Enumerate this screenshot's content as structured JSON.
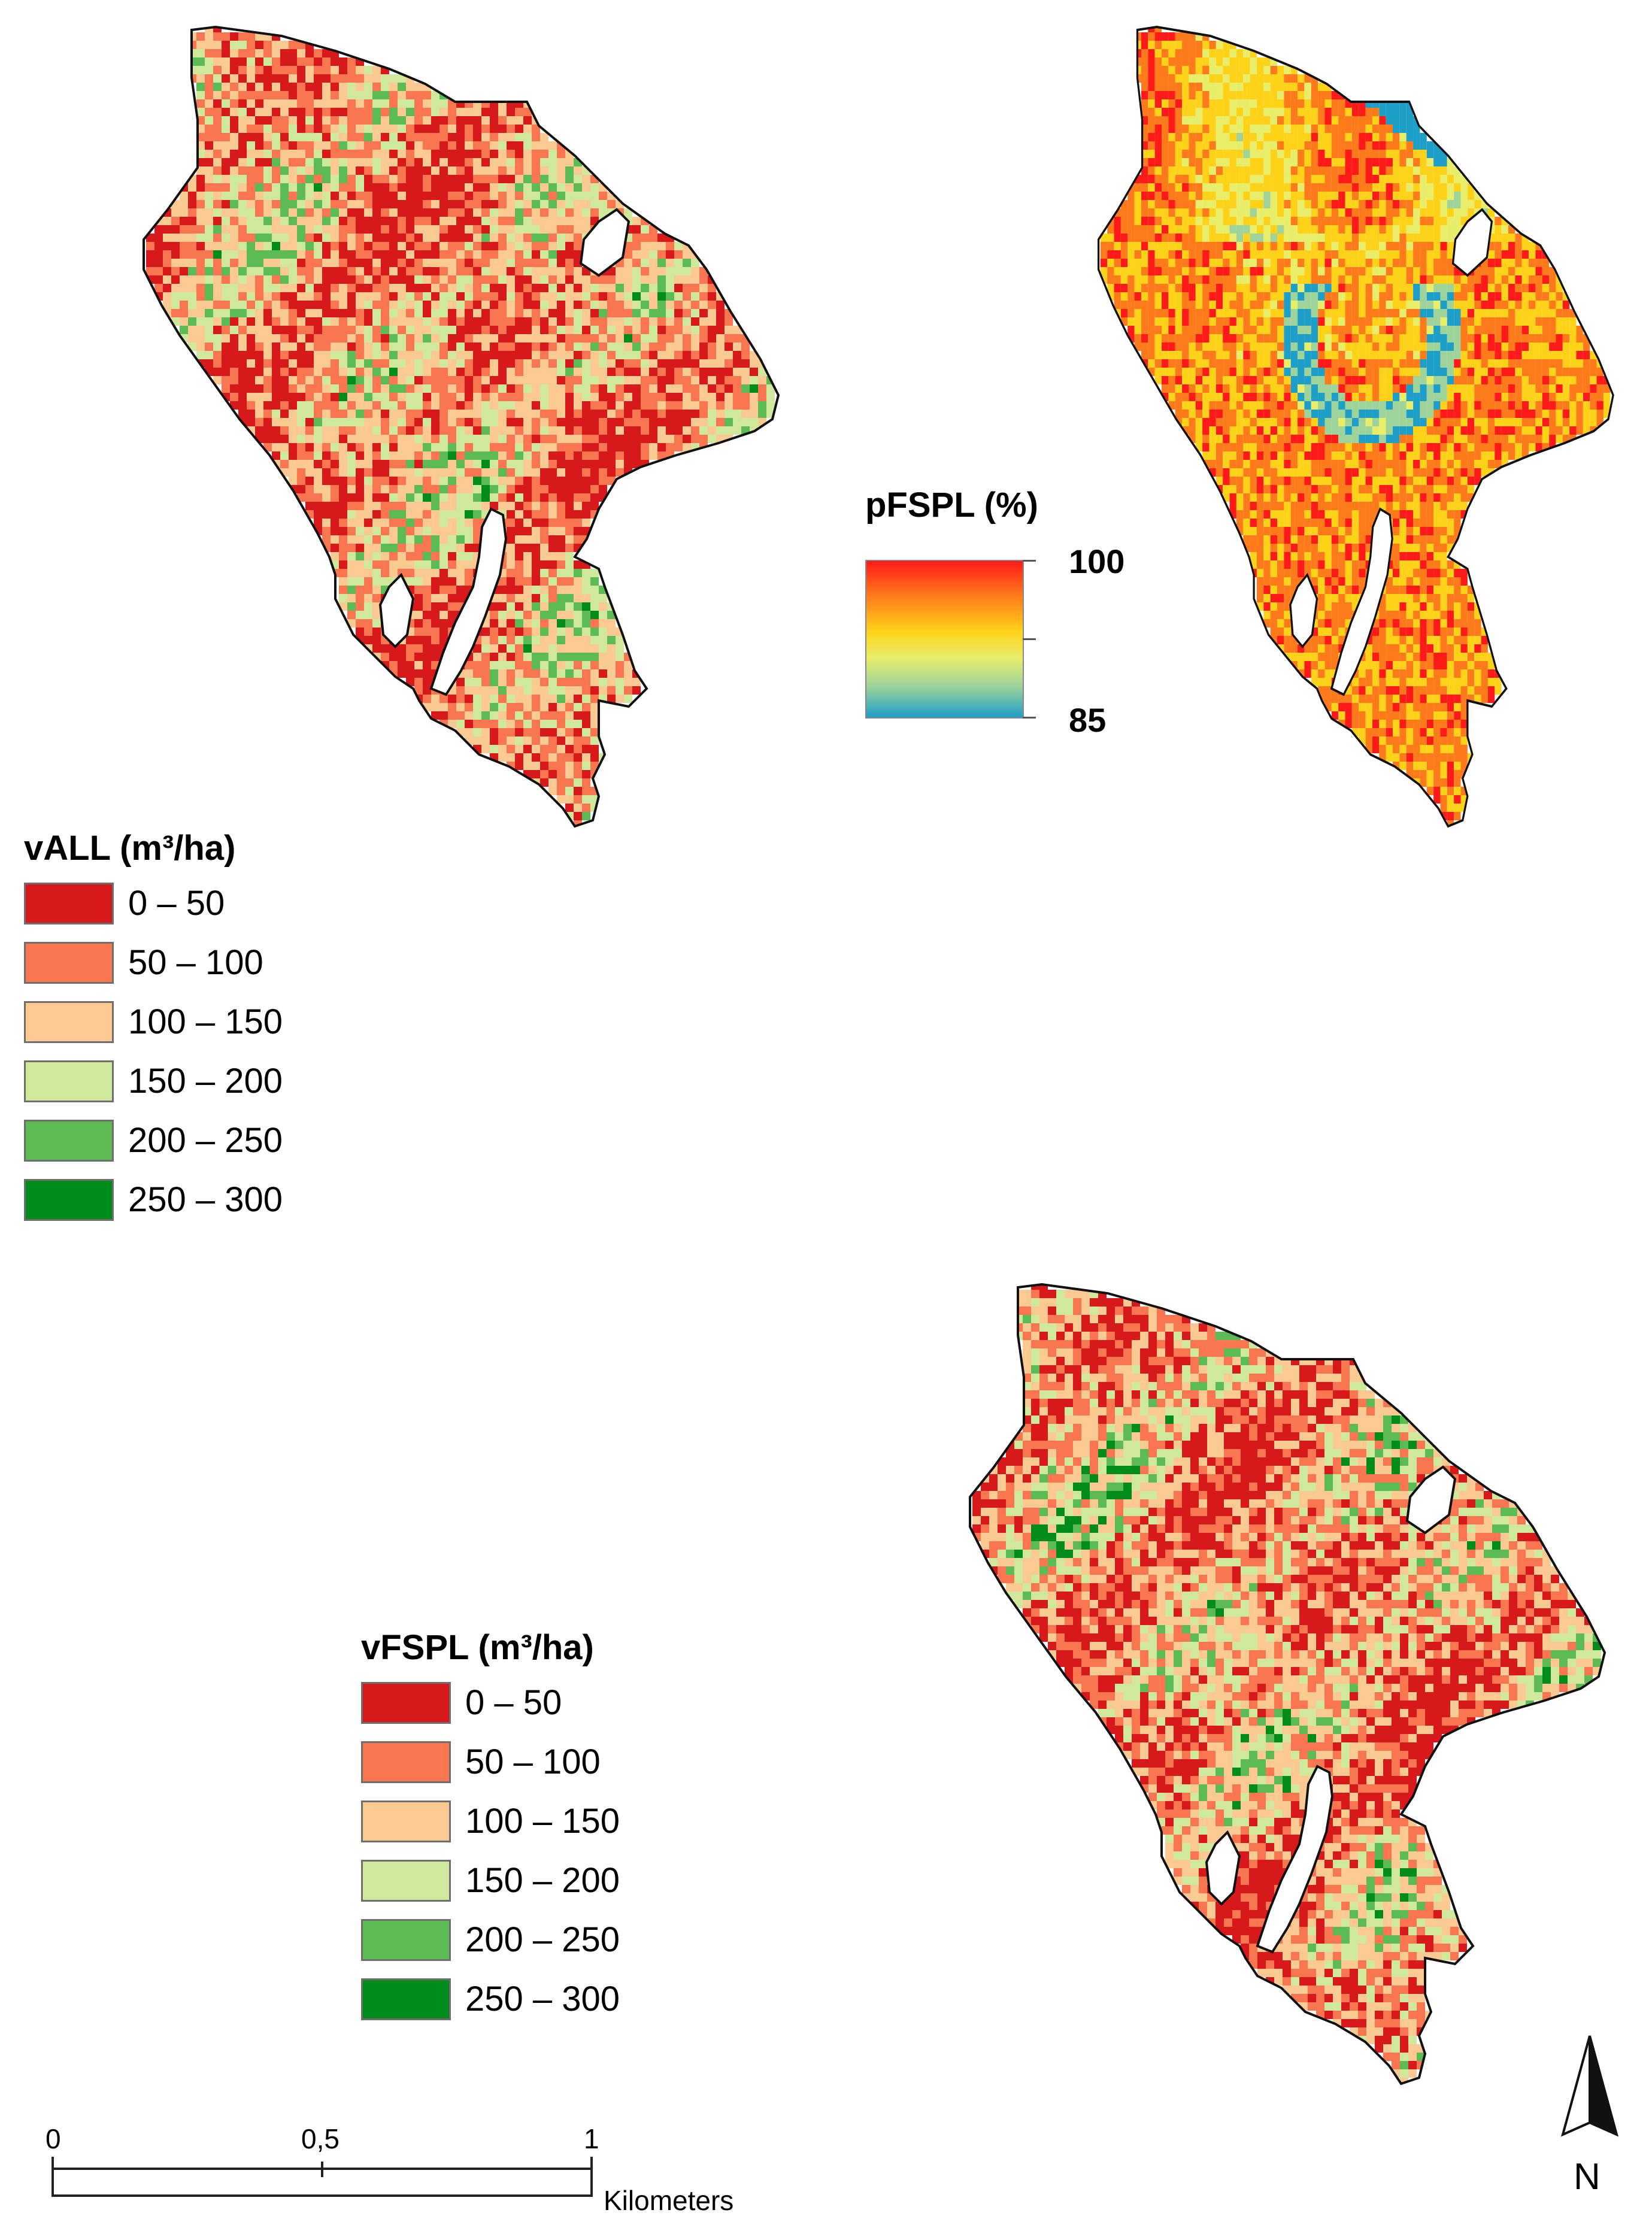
{
  "maps": [
    {
      "name": "vALL",
      "palette": "vALL"
    },
    {
      "name": "pFSPL",
      "palette": "pFSPL"
    },
    {
      "name": "vFSPL",
      "palette": "vFSPL"
    }
  ],
  "legend_vall": {
    "title": "vALL (m³/ha)",
    "classes": [
      {
        "label": "0 – 50",
        "color": "#d7191c"
      },
      {
        "label": "50 – 100",
        "color": "#fa7650"
      },
      {
        "label": "100 – 150",
        "color": "#fdc992"
      },
      {
        "label": "150 – 200",
        "color": "#cfe89c"
      },
      {
        "label": "200 – 250",
        "color": "#5dbb56"
      },
      {
        "label": "250 – 300",
        "color": "#008c1a"
      }
    ]
  },
  "legend_vfspl": {
    "title": "vFSPL (m³/ha)",
    "classes": [
      {
        "label": "0 – 50",
        "color": "#d7191c"
      },
      {
        "label": "50 – 100",
        "color": "#fa7650"
      },
      {
        "label": "100 – 150",
        "color": "#fdc992"
      },
      {
        "label": "150 – 200",
        "color": "#cfe89c"
      },
      {
        "label": "200 – 250",
        "color": "#5dbb56"
      },
      {
        "label": "250 – 300",
        "color": "#008c1a"
      }
    ]
  },
  "legend_pfspl": {
    "title": "pFSPL (%)",
    "max_label": "100",
    "min_label": "85",
    "colors": [
      "#ff1a1a",
      "#ff7a1a",
      "#ffd21a",
      "#e8ee6a",
      "#9ed39a",
      "#1e9fc8"
    ]
  },
  "scale_bar": {
    "ticks": [
      "0",
      "0,5",
      "1"
    ],
    "unit": "Kilometers"
  },
  "north_arrow": {
    "label": "N"
  }
}
